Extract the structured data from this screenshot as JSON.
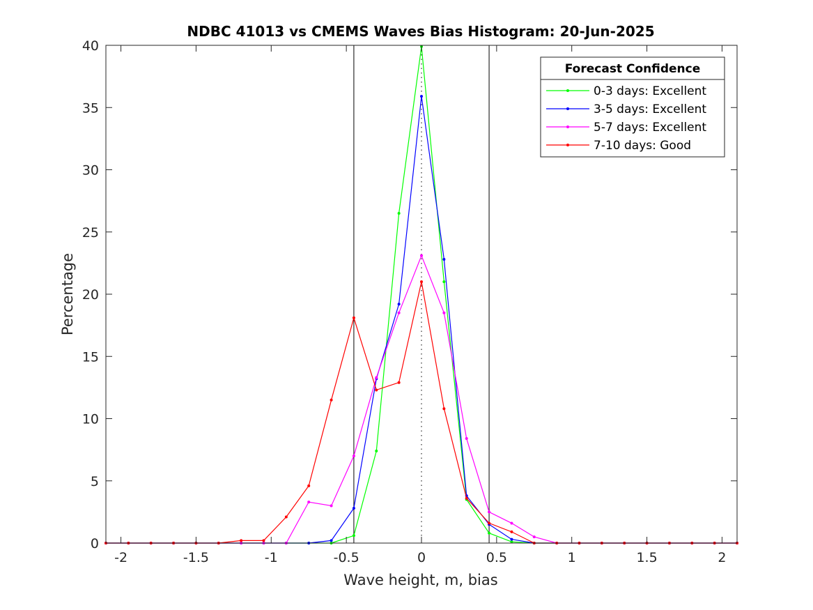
{
  "chart_data": {
    "type": "line",
    "title": "NDBC 41013 vs CMEMS Waves Bias Histogram: 20-Jun-2025",
    "xlabel": "Wave height, m, bias",
    "ylabel": "Percentage",
    "xlim": [
      -2.1,
      2.1
    ],
    "ylim": [
      0,
      40
    ],
    "xticks": [
      -2,
      -1.5,
      -1,
      -0.5,
      0,
      0.5,
      1,
      1.5,
      2
    ],
    "xtick_labels": [
      "-2",
      "-1.5",
      "-1",
      "-0.5",
      "0",
      "0.5",
      "1",
      "1.5",
      "2"
    ],
    "yticks": [
      0,
      5,
      10,
      15,
      20,
      25,
      30,
      35,
      40
    ],
    "ytick_labels": [
      "0",
      "5",
      "10",
      "15",
      "20",
      "25",
      "30",
      "35",
      "40"
    ],
    "grid": false,
    "reference_lines": {
      "solid_x": [
        -0.45,
        0.45
      ],
      "dotted_x": [
        0
      ]
    },
    "legend": {
      "title": "Forecast Confidence",
      "placement": "top-right"
    },
    "x": [
      -2.1,
      -1.95,
      -1.8,
      -1.65,
      -1.5,
      -1.35,
      -1.2,
      -1.05,
      -0.9,
      -0.75,
      -0.6,
      -0.45,
      -0.3,
      -0.15,
      0,
      0.15,
      0.3,
      0.45,
      0.6,
      0.75,
      0.9,
      1.05,
      1.2,
      1.35,
      1.5,
      1.65,
      1.8,
      1.95,
      2.1
    ],
    "series": [
      {
        "name": "0-3 days: Excellent",
        "color": "#00ff00",
        "values": [
          0,
          0,
          0,
          0,
          0,
          0,
          0,
          0,
          0,
          0,
          0,
          0.6,
          7.4,
          26.5,
          39.9,
          21.0,
          3.5,
          0.8,
          0.1,
          0,
          0,
          0,
          0,
          0,
          0,
          0,
          0,
          0,
          0
        ]
      },
      {
        "name": "3-5 days: Excellent",
        "color": "#0000ff",
        "values": [
          0,
          0,
          0,
          0,
          0,
          0,
          0,
          0,
          0,
          0,
          0.2,
          2.8,
          13.2,
          19.2,
          35.9,
          22.8,
          3.8,
          1.5,
          0.3,
          0,
          0,
          0,
          0,
          0,
          0,
          0,
          0,
          0,
          0
        ]
      },
      {
        "name": "5-7 days: Excellent",
        "color": "#ff00ff",
        "values": [
          0,
          0,
          0,
          0,
          0,
          0,
          0,
          0,
          0,
          3.3,
          3.0,
          7.0,
          13.3,
          18.5,
          23.1,
          18.5,
          8.4,
          2.5,
          1.6,
          0.5,
          0,
          0,
          0,
          0,
          0,
          0,
          0,
          0,
          0
        ]
      },
      {
        "name": "7-10 days: Good",
        "color": "#ff0000",
        "values": [
          0,
          0,
          0,
          0,
          0,
          0,
          0.2,
          0.2,
          2.1,
          4.6,
          11.5,
          18.1,
          12.3,
          12.9,
          21.0,
          10.8,
          3.6,
          1.6,
          0.9,
          0,
          0,
          0,
          0,
          0,
          0,
          0,
          0,
          0,
          0
        ]
      }
    ]
  }
}
